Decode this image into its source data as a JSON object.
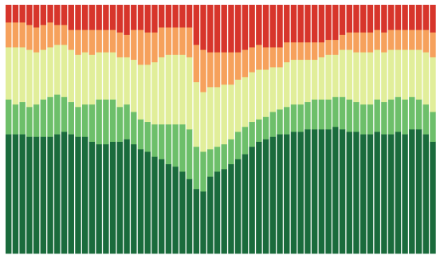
{
  "chart_data": {
    "type": "bar",
    "stacked": true,
    "normalized": true,
    "bar_count": 62,
    "ylim": [
      0,
      100
    ],
    "title": "",
    "xlabel": "",
    "ylabel": "",
    "colors": {
      "dark-green": "#1a6b3c",
      "mid-green": "#6dbf6a",
      "light-yellow-green": "#e1ee9a",
      "orange": "#f6a15c",
      "red": "#d7352b"
    },
    "series": [
      {
        "values": [
          48,
          48,
          48,
          47,
          47,
          47,
          47,
          48,
          49,
          48,
          47,
          47,
          45,
          44,
          44,
          45,
          45,
          46,
          44,
          42,
          41,
          39,
          38,
          36,
          35,
          33,
          30,
          26,
          25,
          31,
          33,
          34,
          36,
          38,
          40,
          43,
          45,
          46,
          47,
          48,
          48,
          49,
          49,
          50,
          50,
          50,
          50,
          51,
          50,
          49,
          49,
          48,
          48,
          49,
          48,
          48,
          49,
          48,
          50,
          50,
          48,
          45
        ]
      },
      {
        "values": [
          14,
          12,
          13,
          12,
          13,
          15,
          16,
          16,
          14,
          13,
          12,
          13,
          15,
          18,
          18,
          17,
          14,
          14,
          13,
          12,
          12,
          13,
          14,
          16,
          17,
          19,
          20,
          17,
          16,
          11,
          10,
          10,
          10,
          11,
          11,
          10,
          9,
          9,
          10,
          10,
          11,
          11,
          11,
          11,
          12,
          12,
          12,
          12,
          13,
          13,
          12,
          12,
          12,
          13,
          13,
          14,
          14,
          14,
          13,
          12,
          12,
          12
        ]
      },
      {
        "values": [
          21,
          23,
          22,
          23,
          21,
          20,
          20,
          20,
          21,
          21,
          21,
          21,
          20,
          19,
          19,
          19,
          20,
          19,
          21,
          22,
          23,
          25,
          27,
          28,
          28,
          28,
          29,
          26,
          24,
          25,
          24,
          24,
          22,
          21,
          20,
          20,
          20,
          19,
          18,
          17,
          18,
          18,
          18,
          17,
          16,
          17,
          18,
          17,
          19,
          20,
          20,
          21,
          21,
          20,
          20,
          20,
          19,
          20,
          19,
          20,
          21,
          22
        ]
      },
      {
        "values": [
          10,
          10,
          10,
          10,
          10,
          10,
          10,
          8,
          8,
          8,
          10,
          9,
          10,
          9,
          9,
          9,
          10,
          9,
          12,
          14,
          13,
          12,
          12,
          11,
          11,
          11,
          12,
          15,
          17,
          14,
          14,
          13,
          13,
          11,
          11,
          10,
          10,
          9,
          8,
          8,
          8,
          7,
          7,
          7,
          7,
          6,
          6,
          6,
          6,
          7,
          8,
          8,
          8,
          8,
          8,
          8,
          8,
          8,
          8,
          8,
          9,
          10
        ]
      },
      {
        "values": [
          7,
          7,
          7,
          8,
          9,
          8,
          7,
          8,
          8,
          10,
          10,
          10,
          10,
          10,
          10,
          10,
          11,
          12,
          10,
          10,
          11,
          11,
          9,
          9,
          9,
          9,
          9,
          16,
          18,
          19,
          19,
          19,
          19,
          19,
          18,
          17,
          16,
          17,
          17,
          17,
          15,
          15,
          15,
          15,
          15,
          15,
          14,
          14,
          12,
          11,
          11,
          11,
          11,
          10,
          11,
          10,
          10,
          10,
          10,
          10,
          10,
          11
        ]
      }
    ]
  }
}
